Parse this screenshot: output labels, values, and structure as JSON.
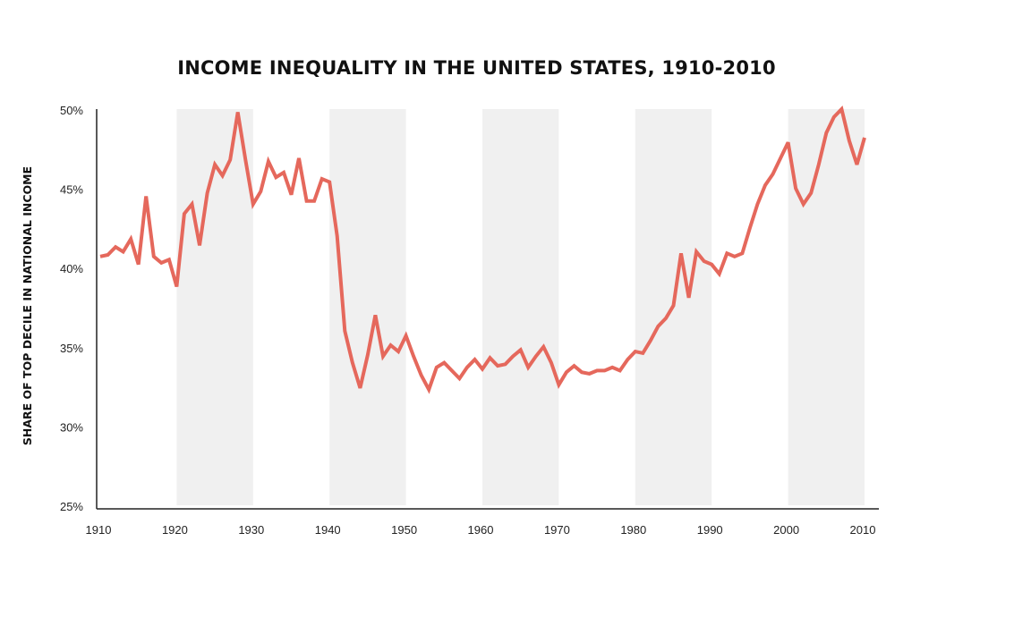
{
  "chart_data": {
    "type": "line",
    "title": "INCOME INEQUALITY IN THE UNITED STATES, 1910-2010",
    "xlabel": "",
    "ylabel": "SHARE OF TOP DECILE IN NATIONAL INCOME",
    "xlim": [
      1910,
      2010
    ],
    "ylim": [
      25,
      50
    ],
    "x_ticks": [
      1910,
      1920,
      1930,
      1940,
      1950,
      1960,
      1970,
      1980,
      1990,
      2000,
      2010
    ],
    "y_ticks": [
      {
        "value": 25,
        "label": "25%"
      },
      {
        "value": 30,
        "label": "30%"
      },
      {
        "value": 35,
        "label": "35%"
      },
      {
        "value": 40,
        "label": "40%"
      },
      {
        "value": 45,
        "label": "45%"
      },
      {
        "value": 50,
        "label": "50%"
      }
    ],
    "shaded_decades": [
      [
        1920,
        1930
      ],
      [
        1940,
        1950
      ],
      [
        1960,
        1970
      ],
      [
        1980,
        1990
      ],
      [
        2000,
        2010
      ]
    ],
    "grid": false,
    "colors": {
      "line": "#e5685c",
      "band": "#f0f0f0",
      "axis": "#222222"
    },
    "series": [
      {
        "name": "",
        "x": [
          1910,
          1911,
          1912,
          1913,
          1914,
          1915,
          1916,
          1917,
          1918,
          1919,
          1920,
          1921,
          1922,
          1923,
          1924,
          1925,
          1926,
          1927,
          1928,
          1929,
          1930,
          1931,
          1932,
          1933,
          1934,
          1935,
          1936,
          1937,
          1938,
          1939,
          1940,
          1941,
          1942,
          1943,
          1944,
          1945,
          1946,
          1947,
          1948,
          1949,
          1950,
          1951,
          1952,
          1953,
          1954,
          1955,
          1956,
          1957,
          1958,
          1959,
          1960,
          1961,
          1962,
          1963,
          1964,
          1965,
          1966,
          1967,
          1968,
          1969,
          1970,
          1971,
          1972,
          1973,
          1974,
          1975,
          1976,
          1977,
          1978,
          1979,
          1980,
          1981,
          1982,
          1983,
          1984,
          1985,
          1986,
          1987,
          1988,
          1989,
          1990,
          1991,
          1992,
          1993,
          1994,
          1995,
          1996,
          1997,
          1998,
          1999,
          2000,
          2001,
          2002,
          2003,
          2004,
          2005,
          2006,
          2007,
          2008,
          2009,
          2010
        ],
        "values": [
          40.7,
          40.8,
          41.3,
          41.0,
          41.8,
          40.2,
          44.5,
          40.7,
          40.3,
          40.5,
          38.8,
          43.4,
          44.0,
          41.4,
          44.7,
          46.5,
          45.8,
          46.8,
          49.8,
          46.8,
          44.0,
          44.8,
          46.7,
          45.7,
          46.0,
          44.6,
          46.9,
          44.2,
          44.2,
          45.6,
          45.4,
          42.0,
          36.0,
          34.0,
          32.4,
          34.5,
          37.0,
          34.4,
          35.1,
          34.7,
          35.7,
          34.4,
          33.2,
          32.3,
          33.7,
          34.0,
          33.5,
          33.0,
          33.7,
          34.2,
          33.6,
          34.3,
          33.8,
          33.9,
          34.4,
          34.8,
          33.7,
          34.4,
          35.0,
          34.0,
          32.6,
          33.4,
          33.8,
          33.4,
          33.3,
          33.5,
          33.5,
          33.7,
          33.5,
          34.2,
          34.7,
          34.6,
          35.4,
          36.3,
          36.8,
          37.6,
          40.9,
          38.1,
          41.0,
          40.4,
          40.2,
          39.6,
          40.9,
          40.7,
          40.9,
          42.5,
          44.0,
          45.2,
          45.9,
          46.9,
          47.9,
          45.0,
          44.0,
          44.7,
          46.5,
          48.5,
          49.5,
          50.0,
          48.0,
          46.5,
          48.2
        ]
      }
    ]
  }
}
